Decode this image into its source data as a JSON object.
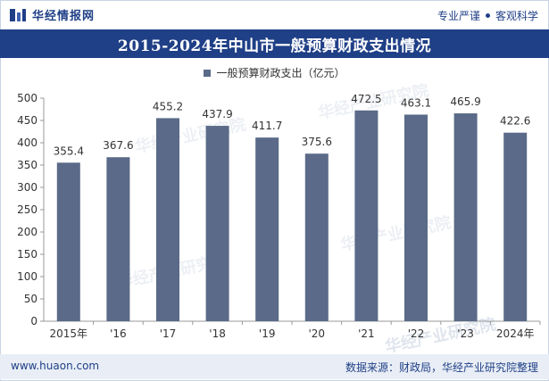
{
  "header": {
    "brand": "华经情报网",
    "tag1": "专业严谨",
    "tag2": "客观科学"
  },
  "chart_data": {
    "type": "bar",
    "title": "2015-2024年中山市一般预算财政支出情况",
    "legend": "一般预算财政支出（亿元）",
    "categories": [
      "2015年",
      "'16",
      "'17",
      "'18",
      "'19",
      "'20",
      "'21",
      "'22",
      "'23",
      "2024年"
    ],
    "values": [
      355.4,
      367.6,
      455.2,
      437.9,
      411.7,
      375.6,
      472.5,
      463.1,
      465.9,
      422.6
    ],
    "value_labels": [
      "355.4",
      "367.6",
      "455.2",
      "437.9",
      "411.7",
      "375.6",
      "472.5",
      "463.1",
      "465.9",
      "422.6"
    ],
    "ylim": [
      0,
      500
    ],
    "yticks": [
      "0",
      "50",
      "100",
      "150",
      "200",
      "250",
      "300",
      "350",
      "400",
      "450",
      "500"
    ],
    "bar_color": "#5a6a88",
    "grid": false,
    "legend_position": "top"
  },
  "watermark": {
    "name": "华经产业研究院",
    "url": "www.huaon.com"
  },
  "footer": {
    "website": "www.huaon.com",
    "source": "数据来源：财政局，华经产业研究院整理"
  },
  "colors": {
    "brand": "#1f3f86",
    "bar": "#5a6a88",
    "footer_bg": "#e9eef6"
  }
}
